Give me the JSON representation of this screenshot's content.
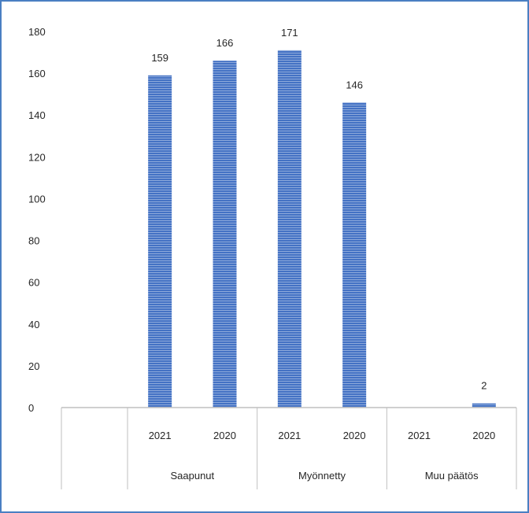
{
  "chart_data": {
    "type": "bar",
    "groups": [
      "Saapunut",
      "Myönnetty",
      "Muu päätös"
    ],
    "categories": [
      "2021",
      "2020",
      "2021",
      "2020",
      "2021",
      "2020"
    ],
    "values": [
      159,
      166,
      171,
      146,
      0,
      2
    ],
    "data_labels": [
      "159",
      "166",
      "171",
      "146",
      "",
      "2"
    ],
    "title": "",
    "xlabel": "",
    "ylabel": "",
    "ylim": [
      0,
      180
    ],
    "yticks": [
      0,
      20,
      40,
      60,
      80,
      100,
      120,
      140,
      160,
      180
    ],
    "grid": false,
    "legend": "none",
    "colors": {
      "bar_fill": "#4472c4",
      "bar_stripe": "#8eaadb",
      "axis": "#bfbfbf",
      "frame": "#4a7fc2",
      "text": "#262626"
    }
  }
}
